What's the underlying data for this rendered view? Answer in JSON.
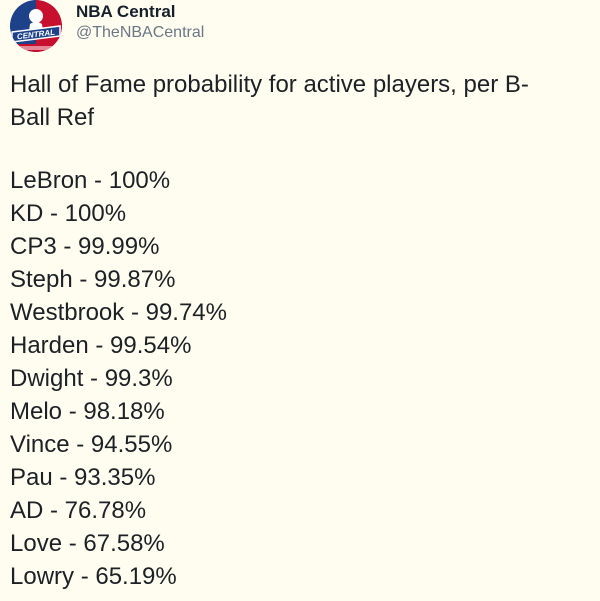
{
  "account": {
    "display_name": "NBA Central",
    "handle": "@TheNBACentral",
    "avatar_label": "CENTRAL",
    "avatar_colors": {
      "blue": "#1d428a",
      "red": "#c8102e",
      "white": "#ffffff"
    }
  },
  "tweet": {
    "intro_line1": "Hall of Fame probability for active players, per B-",
    "intro_line2": "Ball Ref",
    "items": [
      "LeBron - 100%",
      "KD - 100%",
      "CP3 - 99.99%",
      "Steph - 99.87%",
      "Westbrook - 99.74%",
      "Harden - 99.54%",
      "Dwight - 99.3%",
      "Melo - 98.18%",
      "Vince - 94.55%",
      "Pau - 93.35%",
      "AD - 76.78%",
      "Love - 67.58%",
      "Lowry - 65.19%"
    ]
  }
}
